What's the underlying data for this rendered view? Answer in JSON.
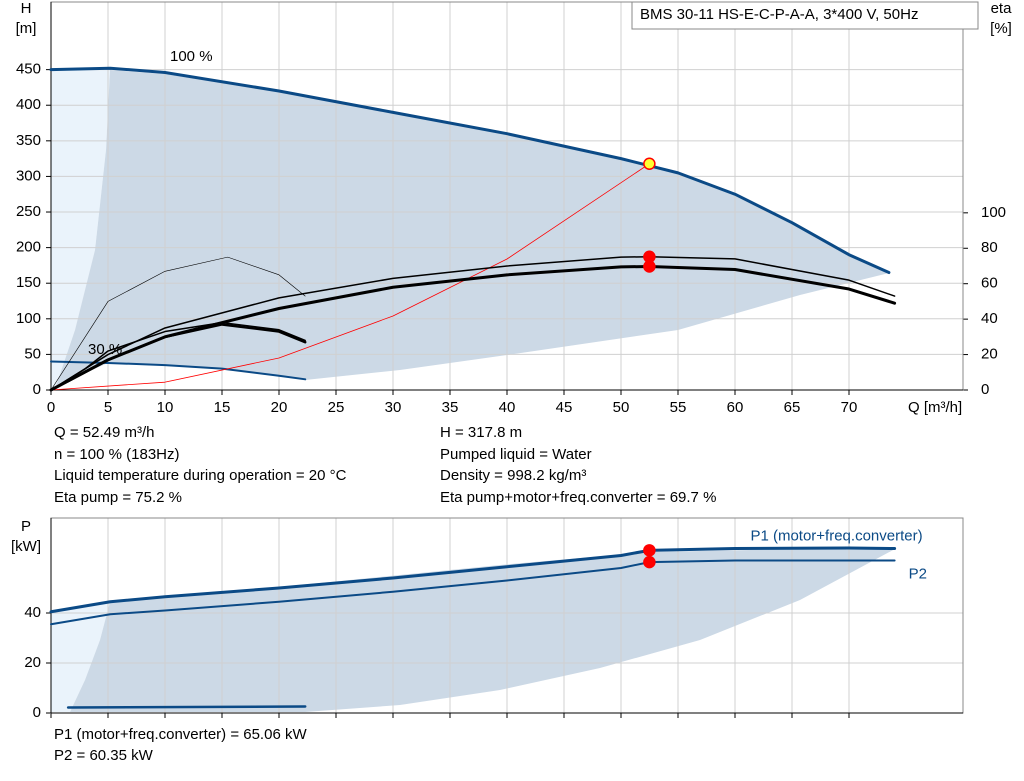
{
  "chart_data": [
    {
      "type": "line",
      "title": "BMS 30-11 HS-E-C-P-A-A, 3*400 V, 50Hz",
      "ylabel": "H",
      "yunit": "[m]",
      "y2label": "eta",
      "y2unit": "[%]",
      "xlabel": "Q [m³/h]",
      "xlim": [
        0,
        80
      ],
      "xticks": [
        0,
        5,
        10,
        15,
        20,
        25,
        30,
        35,
        40,
        45,
        50,
        55,
        60,
        65,
        70
      ],
      "ylim": [
        0,
        545
      ],
      "yticks": [
        0,
        50,
        100,
        150,
        200,
        250,
        300,
        350,
        400,
        450
      ],
      "y2lim": [
        0,
        219
      ],
      "y2ticks": [
        0,
        20,
        40,
        60,
        80,
        100
      ],
      "grid": true,
      "annotations": [
        "100 %",
        "30 %"
      ],
      "series": [
        {
          "color": "#0b4a86",
          "x": [
            0,
            5.2,
            10,
            20,
            30,
            40,
            50,
            55,
            60,
            65,
            70,
            73.5
          ],
          "values": [
            450,
            452,
            446,
            420,
            390,
            360,
            325,
            305,
            275,
            235,
            190,
            165
          ]
        },
        {
          "color": "#0b4a86",
          "x": [
            0,
            5,
            10,
            15,
            20,
            22.3
          ],
          "values": [
            40,
            38,
            35,
            30,
            20,
            15
          ]
        },
        {
          "color": "#ff0000",
          "x": [
            0,
            10,
            20,
            30,
            40,
            52.49
          ],
          "values": [
            0,
            11,
            45,
            104,
            184,
            317.8
          ]
        },
        {
          "color": "#000000",
          "axis": "y2",
          "x": [
            0,
            5,
            10,
            20,
            30,
            40,
            50,
            52.49,
            60,
            70,
            74
          ],
          "values": [
            0,
            20,
            35,
            52,
            63,
            70,
            75,
            75.2,
            74,
            62,
            53
          ]
        },
        {
          "color": "#000000",
          "axis": "y2",
          "x": [
            0,
            5,
            10,
            20,
            30,
            40,
            50,
            52.49,
            60,
            70,
            74
          ],
          "values": [
            0,
            17,
            30,
            46,
            58,
            65,
            69.5,
            69.7,
            68,
            57,
            49
          ]
        },
        {
          "color": "#000000",
          "axis": "y2",
          "x": [
            0,
            5,
            10,
            15.5,
            20,
            22.3
          ],
          "values": [
            0,
            50,
            67,
            75,
            65,
            53
          ]
        },
        {
          "color": "#000000",
          "axis": "y2",
          "x": [
            0,
            3,
            5,
            10,
            15,
            20,
            22.3
          ],
          "values": [
            0,
            12,
            22,
            33,
            38,
            34,
            28
          ]
        },
        {
          "color": "#000000",
          "axis": "y2",
          "x": [
            1.5,
            5,
            10,
            15,
            20,
            22.3
          ],
          "values": [
            5,
            17,
            30,
            37,
            33,
            27
          ]
        }
      ],
      "duty_points": [
        {
          "x": 52.49,
          "y": 317.8,
          "color": "#ffff33"
        },
        {
          "x": 52.49,
          "y": 75.2,
          "axis": "y2",
          "color": "#ff0000"
        },
        {
          "x": 52.49,
          "y": 69.7,
          "axis": "y2",
          "color": "#ff0000"
        }
      ],
      "info": [
        "Q = 52.49 m³/h",
        "n = 100 % (183Hz)",
        "Liquid temperature during operation = 20 °C",
        "Eta pump = 75.2 %",
        "H = 317.8 m",
        "Pumped liquid = Water",
        "Density = 998.2 kg/m³",
        "Eta pump+motor+freq.converter = 69.7 %"
      ]
    },
    {
      "type": "line",
      "ylabel": "P",
      "yunit": "[kW]",
      "xlim": [
        0,
        80
      ],
      "xticks": [
        0,
        5,
        10,
        15,
        20,
        25,
        30,
        35,
        40,
        45,
        50,
        55,
        60,
        65,
        70
      ],
      "ylim": [
        0,
        78
      ],
      "yticks": [
        0,
        20,
        40
      ],
      "grid": true,
      "series": [
        {
          "name": "P1 (motor+freq.converter)",
          "color": "#0b4a86",
          "x": [
            0,
            5.2,
            10,
            20,
            30,
            40,
            50,
            52.49,
            60,
            70,
            74
          ],
          "values": [
            40.5,
            44.5,
            46.5,
            50,
            54,
            58.5,
            63,
            65.06,
            65.8,
            66,
            65.8
          ]
        },
        {
          "name": "P2",
          "color": "#0b4a86",
          "x": [
            0,
            5.2,
            10,
            20,
            30,
            40,
            50,
            52.49,
            60,
            70,
            74
          ],
          "values": [
            35.5,
            39.5,
            41,
            44.5,
            48.5,
            53,
            58,
            60.35,
            61,
            61,
            61
          ]
        },
        {
          "color": "#0b4a86",
          "x": [
            1.5,
            22.3
          ],
          "values": [
            2.2,
            2.6
          ]
        }
      ],
      "duty_points": [
        {
          "x": 52.49,
          "y": 65.06,
          "color": "#ff0000"
        },
        {
          "x": 52.49,
          "y": 60.35,
          "color": "#ff0000"
        }
      ],
      "info": [
        "P1 (motor+freq.converter) = 65.06 kW",
        "P2 = 60.35 kW"
      ]
    }
  ]
}
